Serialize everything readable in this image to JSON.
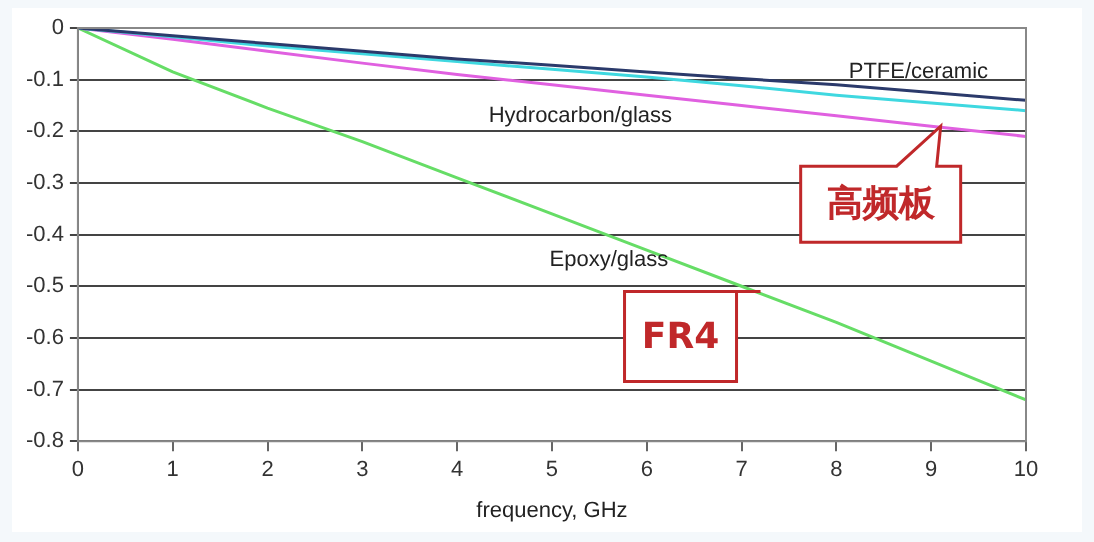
{
  "chart_data": {
    "type": "line",
    "xlabel": "frequency, GHz",
    "x": [
      0,
      1,
      2,
      3,
      4,
      5,
      6,
      7,
      8,
      9,
      10
    ],
    "series": [
      {
        "name": "PTFE/ceramic",
        "color": "#2b3a6b",
        "values": [
          0,
          -0.015,
          -0.03,
          -0.045,
          -0.06,
          -0.072,
          -0.085,
          -0.098,
          -0.11,
          -0.125,
          -0.14
        ]
      },
      {
        "color": "#3fd8e0",
        "values": [
          0,
          -0.017,
          -0.035,
          -0.05,
          -0.065,
          -0.08,
          -0.095,
          -0.112,
          -0.13,
          -0.145,
          -0.16
        ]
      },
      {
        "name": "Hydrocarbon/glass",
        "color": "#e060e0",
        "values": [
          0,
          -0.022,
          -0.045,
          -0.068,
          -0.09,
          -0.11,
          -0.13,
          -0.15,
          -0.17,
          -0.19,
          -0.21
        ]
      },
      {
        "name": "Epoxy/glass",
        "color": "#66dd66",
        "values": [
          0,
          -0.085,
          -0.155,
          -0.22,
          -0.29,
          -0.36,
          -0.43,
          -0.5,
          -0.57,
          -0.645,
          -0.72
        ]
      }
    ],
    "xlim": [
      0,
      10
    ],
    "xticks": [
      0,
      1,
      2,
      3,
      4,
      5,
      6,
      7,
      8,
      9,
      10
    ],
    "ylim": [
      -0.8,
      0
    ],
    "yticks": [
      -0.8,
      -0.7,
      -0.6,
      -0.5,
      -0.4,
      -0.3,
      -0.2,
      -0.1,
      0
    ],
    "grid": "y",
    "legend": false,
    "marker": "none",
    "line_style": "solid",
    "annotations": [
      {
        "text": "高频板",
        "x": 9.1,
        "y": -0.19
      },
      {
        "text": "FR4",
        "x": 7.2,
        "y": -0.51
      }
    ]
  }
}
